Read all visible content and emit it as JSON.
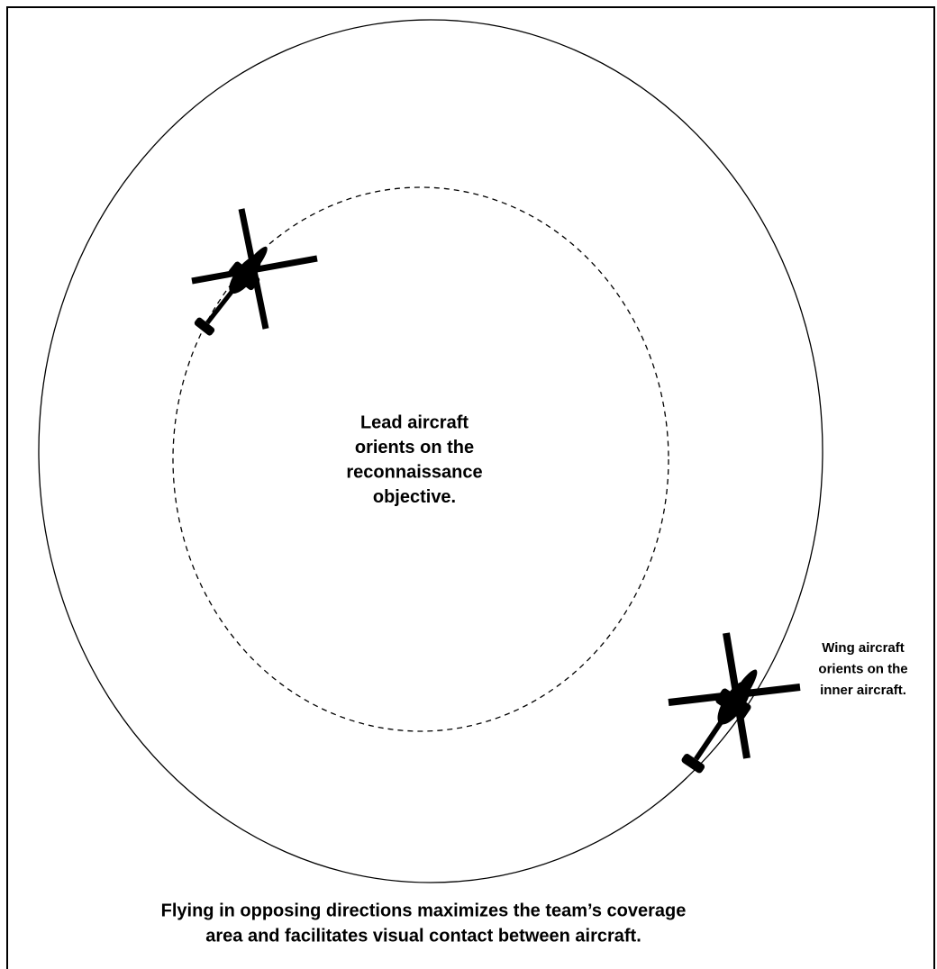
{
  "center_label": [
    "Lead aircraft",
    "orients on the",
    "reconnaissance",
    "objective."
  ],
  "wing_label": [
    "Wing aircraft",
    "orients on the",
    "inner aircraft."
  ],
  "caption": [
    "Flying in opposing directions maximizes the team’s coverage",
    "area and facilitates visual contact between aircraft."
  ]
}
